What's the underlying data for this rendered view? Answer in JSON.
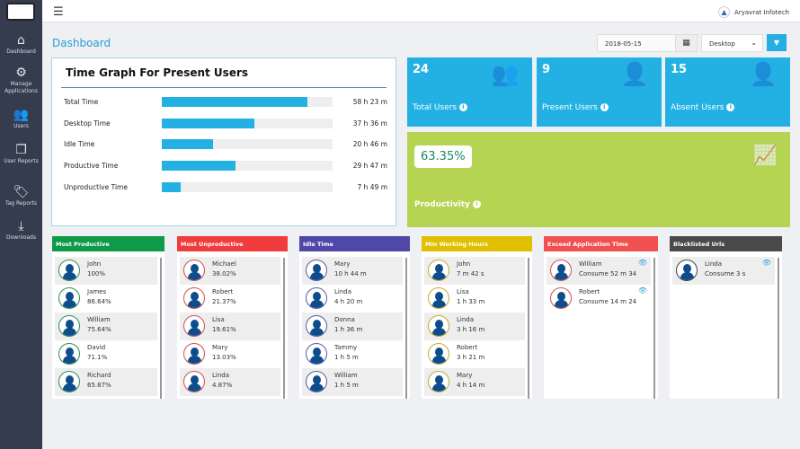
{
  "brand": {
    "company": "Aryavrat Infotech"
  },
  "sidebar": {
    "items": [
      {
        "label": "Dashboard",
        "icon": "home-icon"
      },
      {
        "label": "Manage Applications",
        "icon": "gears-icon"
      },
      {
        "label": "Users",
        "icon": "users-icon"
      },
      {
        "label": "User Reports",
        "icon": "reports-icon"
      },
      {
        "label": "Tag Reports",
        "icon": "tags-icon"
      },
      {
        "label": "Downloads",
        "icon": "download-icon"
      }
    ]
  },
  "page": {
    "title": "Dashboard"
  },
  "filters": {
    "date": "2018-05-15",
    "device": "Desktop"
  },
  "time_graph": {
    "title": "Time Graph For Present Users",
    "rows": [
      {
        "label": "Total Time",
        "value": "58 h 23 m",
        "fill": 0.85
      },
      {
        "label": "Desktop Time",
        "value": "37 h 36 m",
        "fill": 0.54
      },
      {
        "label": "Idle Time",
        "value": "20 h 46 m",
        "fill": 0.3
      },
      {
        "label": "Productive Time",
        "value": "29 h 47 m",
        "fill": 0.43
      },
      {
        "label": "Unproductive Time",
        "value": "7 h 49 m",
        "fill": 0.11
      }
    ]
  },
  "stats": [
    {
      "value": "24",
      "label": "Total Users"
    },
    {
      "value": "9",
      "label": "Present Users"
    },
    {
      "value": "15",
      "label": "Absent Users"
    }
  ],
  "productivity": {
    "value": "63.35%",
    "label": "Productivity"
  },
  "cards": [
    {
      "title": "Most Productive",
      "color": "#0f9a48",
      "ring": "#2e8b57",
      "items": [
        {
          "name": "John",
          "value": "100%"
        },
        {
          "name": "James",
          "value": "86.64%"
        },
        {
          "name": "William",
          "value": "75.64%"
        },
        {
          "name": "David",
          "value": "71.1%"
        },
        {
          "name": "Richard",
          "value": "65.87%"
        }
      ]
    },
    {
      "title": "Most Unproductive",
      "color": "#f03c3c",
      "ring": "#d05050",
      "items": [
        {
          "name": "Michael",
          "value": "38.02%"
        },
        {
          "name": "Robert",
          "value": "21.37%"
        },
        {
          "name": "Lisa",
          "value": "19.61%"
        },
        {
          "name": "Mary",
          "value": "13.03%"
        },
        {
          "name": "Linda",
          "value": "4.87%"
        }
      ]
    },
    {
      "title": "Idle Time",
      "color": "#5048a8",
      "ring": "#5a5aa0",
      "items": [
        {
          "name": "Mary",
          "value": "10 h 44 m"
        },
        {
          "name": "Linda",
          "value": "4 h 20 m"
        },
        {
          "name": "Donna",
          "value": "1 h 36 m"
        },
        {
          "name": "Tammy",
          "value": "1 h 5 m"
        },
        {
          "name": "William",
          "value": "1 h 5 m"
        }
      ]
    },
    {
      "title": "Min Working Hours",
      "color": "#e0c000",
      "ring": "#c8a830",
      "items": [
        {
          "name": "John",
          "value": "7 m 42 s"
        },
        {
          "name": "Lisa",
          "value": "1 h 33 m"
        },
        {
          "name": "Linda",
          "value": "3 h 16 m"
        },
        {
          "name": "Robert",
          "value": "3 h 21 m"
        },
        {
          "name": "Mary",
          "value": "4 h 14 m"
        }
      ]
    },
    {
      "title": "Exceed Application Time",
      "color": "#f05050",
      "ring": "#d05050",
      "eye": true,
      "items": [
        {
          "name": "William",
          "value": "Consume 52 m 34"
        },
        {
          "name": "Robert",
          "value": "Consume 14 m 24"
        }
      ]
    },
    {
      "title": "Blacklisted Urls",
      "color": "#4a4a4a",
      "ring": "#444",
      "eye": true,
      "items": [
        {
          "name": "Linda",
          "value": "Consume 3 s"
        }
      ]
    }
  ]
}
